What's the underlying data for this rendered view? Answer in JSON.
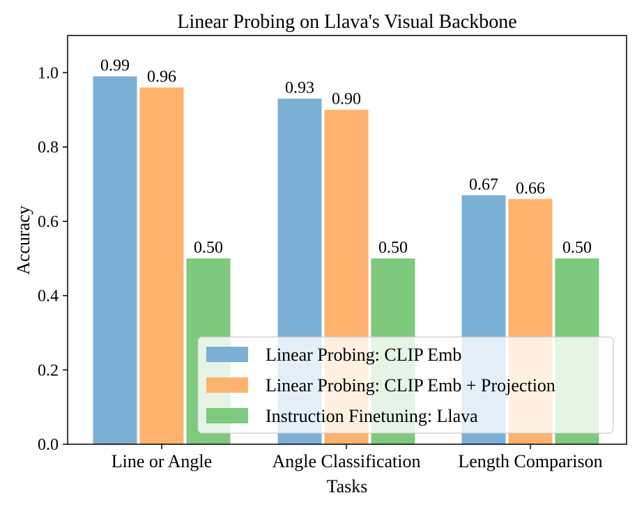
{
  "chart_data": {
    "type": "bar",
    "title": "Linear Probing on Llava's Visual Backbone",
    "xlabel": "Tasks",
    "ylabel": "Accuracy",
    "categories": [
      "Line or Angle",
      "Angle Classification",
      "Length Comparison"
    ],
    "ylim": [
      0,
      1.1
    ],
    "yticks": [
      "0.0",
      "0.2",
      "0.4",
      "0.6",
      "0.8",
      "1.0"
    ],
    "grid": false,
    "legend_position": "lower-right",
    "series": [
      {
        "name": "Linear Probing: CLIP Emb",
        "color": "#7bafd4",
        "values": [
          0.99,
          0.93,
          0.67
        ],
        "labels": [
          "0.99",
          "0.93",
          "0.67"
        ]
      },
      {
        "name": "Linear Probing: CLIP Emb + Projection",
        "color": "#ffb26e",
        "values": [
          0.96,
          0.9,
          0.66
        ],
        "labels": [
          "0.96",
          "0.90",
          "0.66"
        ]
      },
      {
        "name": "Instruction Finetuning: Llava",
        "color": "#7dc97d",
        "values": [
          0.5,
          0.5,
          0.5
        ],
        "labels": [
          "0.50",
          "0.50",
          "0.50"
        ]
      }
    ]
  }
}
